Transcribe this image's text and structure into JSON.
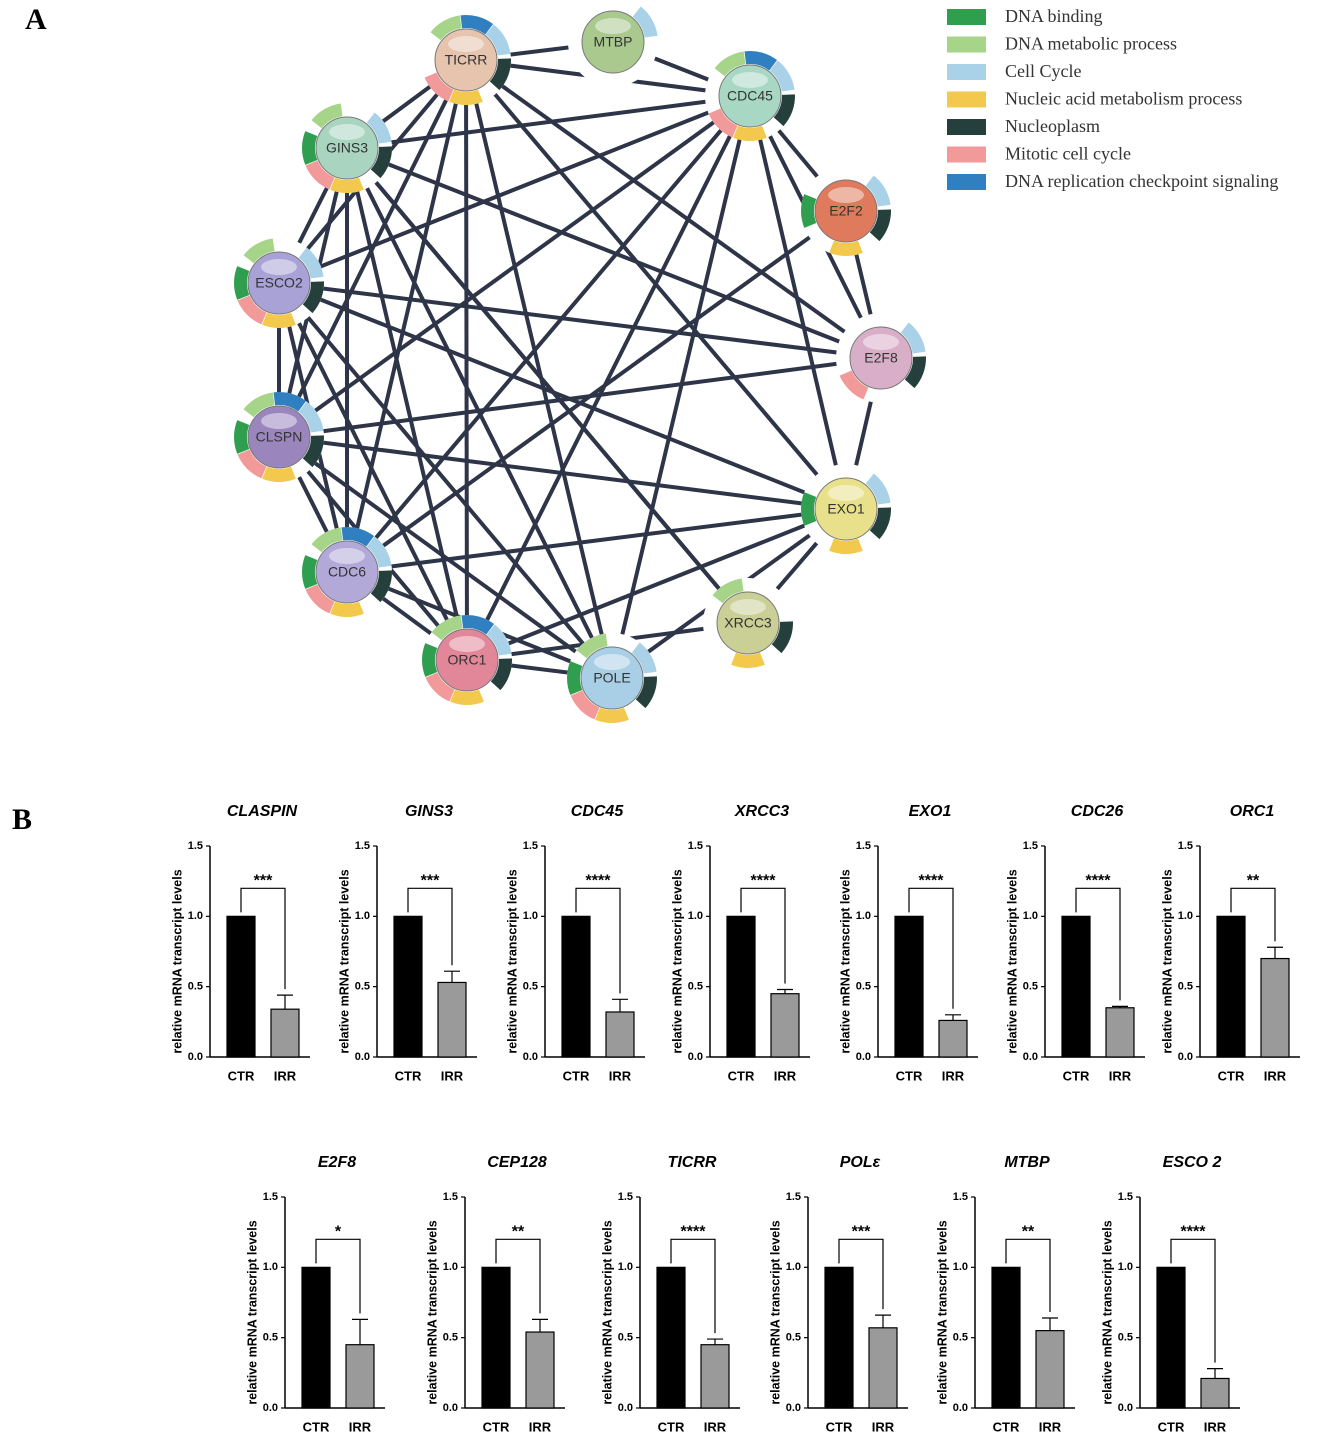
{
  "figure": {
    "panel_labels": [
      "A",
      "B"
    ]
  },
  "network": {
    "legend": [
      {
        "name": "DNA binding",
        "color": "#2f9e4f"
      },
      {
        "name": "DNA metabolic process",
        "color": "#a6d58a"
      },
      {
        "name": "Cell Cycle",
        "color": "#a9d2e8"
      },
      {
        "name": "Nucleic acid metabolism process",
        "color": "#f2c94c"
      },
      {
        "name": "Nucleoplasm",
        "color": "#25403c"
      },
      {
        "name": "Mitotic cell cycle",
        "color": "#f29a9a"
      },
      {
        "name": "DNA replication checkpoint signaling",
        "color": "#2f7fc1"
      }
    ],
    "nodes": [
      "TICRR",
      "MTBP",
      "CDC45",
      "E2F2",
      "E2F8",
      "EXO1",
      "XRCC3",
      "POLE",
      "ORC1",
      "CDC6",
      "CLSPN",
      "ESCO2",
      "GINS3"
    ]
  },
  "chart_data": [
    {
      "type": "bar",
      "title": "CLASPIN",
      "y_label": "relative mRNA transcript levels",
      "categories": [
        "CTR",
        "IRR"
      ],
      "values": [
        1.0,
        0.34
      ],
      "errors": [
        null,
        0.1
      ],
      "colors": [
        "#000000",
        "#9a9a9a"
      ],
      "significance": "***",
      "ylim": [
        0,
        1.5
      ],
      "yticks": [
        {
          "value": 0,
          "label": "0.0"
        },
        0.5,
        {
          "value": 1,
          "label": "1.0"
        },
        1.5
      ]
    },
    {
      "type": "bar",
      "title": "GINS3",
      "y_label": "relative mRNA transcript levels",
      "categories": [
        "CTR",
        "IRR"
      ],
      "values": [
        1.0,
        0.53
      ],
      "errors": [
        null,
        0.08
      ],
      "colors": [
        "#000000",
        "#9a9a9a"
      ],
      "significance": "***",
      "ylim": [
        0,
        1.5
      ],
      "yticks": [
        {
          "value": 0,
          "label": "0.0"
        },
        0.5,
        {
          "value": 1,
          "label": "1.0"
        },
        1.5
      ]
    },
    {
      "type": "bar",
      "title": "CDC45",
      "y_label": "relative mRNA transcript levels",
      "categories": [
        "CTR",
        "IRR"
      ],
      "values": [
        1.0,
        0.32
      ],
      "errors": [
        null,
        0.09
      ],
      "colors": [
        "#000000",
        "#9a9a9a"
      ],
      "significance": "****",
      "ylim": [
        0,
        1.5
      ],
      "yticks": [
        {
          "value": 0,
          "label": "0.0"
        },
        0.5,
        {
          "value": 1,
          "label": "1.0"
        },
        1.5
      ]
    },
    {
      "type": "bar",
      "title": "XRCC3",
      "y_label": "relative mRNA transcript levels",
      "categories": [
        "CTR",
        "IRR"
      ],
      "values": [
        1.0,
        0.45
      ],
      "errors": [
        null,
        0.03
      ],
      "colors": [
        "#000000",
        "#9a9a9a"
      ],
      "significance": "****",
      "ylim": [
        0,
        1.5
      ],
      "yticks": [
        {
          "value": 0,
          "label": "0.0"
        },
        0.5,
        {
          "value": 1,
          "label": "1.0"
        },
        1.5
      ]
    },
    {
      "type": "bar",
      "title": "EXO1",
      "y_label": "relative mRNA transcript levels",
      "categories": [
        "CTR",
        "IRR"
      ],
      "values": [
        1.0,
        0.26
      ],
      "errors": [
        null,
        0.04
      ],
      "colors": [
        "#000000",
        "#9a9a9a"
      ],
      "significance": "****",
      "ylim": [
        0,
        1.5
      ],
      "yticks": [
        {
          "value": 0,
          "label": "0.0"
        },
        0.5,
        {
          "value": 1,
          "label": "1.0"
        },
        1.5
      ]
    },
    {
      "type": "bar",
      "title": "CDC26",
      "y_label": "relative mRNA transcript levels",
      "categories": [
        "CTR",
        "IRR"
      ],
      "values": [
        1.0,
        0.35
      ],
      "errors": [
        null,
        0.01
      ],
      "colors": [
        "#000000",
        "#9a9a9a"
      ],
      "significance": "****",
      "ylim": [
        0,
        1.5
      ],
      "yticks": [
        {
          "value": 0,
          "label": "0.0"
        },
        0.5,
        {
          "value": 1,
          "label": "1.0"
        },
        1.5
      ]
    },
    {
      "type": "bar",
      "title": "ORC1",
      "y_label": "relative mRNA transcript levels",
      "categories": [
        "CTR",
        "IRR"
      ],
      "values": [
        1.0,
        0.7
      ],
      "errors": [
        null,
        0.08
      ],
      "colors": [
        "#000000",
        "#9a9a9a"
      ],
      "significance": "**",
      "ylim": [
        0,
        1.5
      ],
      "yticks": [
        {
          "value": 0,
          "label": "0.0"
        },
        0.5,
        {
          "value": 1,
          "label": "1.0"
        },
        1.5
      ]
    },
    {
      "type": "bar",
      "title": "E2F8",
      "y_label": "relative mRNA transcript levels",
      "categories": [
        "CTR",
        "IRR"
      ],
      "values": [
        1.0,
        0.45
      ],
      "errors": [
        null,
        0.18
      ],
      "colors": [
        "#000000",
        "#9a9a9a"
      ],
      "significance": "*",
      "ylim": [
        0,
        1.5
      ],
      "yticks": [
        {
          "value": 0,
          "label": "0.0"
        },
        0.5,
        {
          "value": 1,
          "label": "1.0"
        },
        1.5
      ]
    },
    {
      "type": "bar",
      "title": "CEP128",
      "y_label": "relative mRNA transcript levels",
      "categories": [
        "CTR",
        "IRR"
      ],
      "values": [
        1.0,
        0.54
      ],
      "errors": [
        null,
        0.09
      ],
      "colors": [
        "#000000",
        "#9a9a9a"
      ],
      "significance": "**",
      "ylim": [
        0,
        1.5
      ],
      "yticks": [
        {
          "value": 0,
          "label": "0.0"
        },
        0.5,
        {
          "value": 1,
          "label": "1.0"
        },
        1.5
      ]
    },
    {
      "type": "bar",
      "title": "TICRR",
      "y_label": "relative mRNA transcript levels",
      "categories": [
        "CTR",
        "IRR"
      ],
      "values": [
        1.0,
        0.45
      ],
      "errors": [
        null,
        0.04
      ],
      "colors": [
        "#000000",
        "#9a9a9a"
      ],
      "significance": "****",
      "ylim": [
        0,
        1.5
      ],
      "yticks": [
        {
          "value": 0,
          "label": "0.0"
        },
        0.5,
        {
          "value": 1,
          "label": "1.0"
        },
        1.5
      ]
    },
    {
      "type": "bar",
      "title": "POLε",
      "y_label": "relative mRNA transcript levels",
      "categories": [
        "CTR",
        "IRR"
      ],
      "values": [
        1.0,
        0.57
      ],
      "errors": [
        null,
        0.09
      ],
      "colors": [
        "#000000",
        "#9a9a9a"
      ],
      "significance": "***",
      "ylim": [
        0,
        1.5
      ],
      "yticks": [
        {
          "value": 0,
          "label": "0.0"
        },
        0.5,
        {
          "value": 1,
          "label": "1.0"
        },
        1.5
      ]
    },
    {
      "type": "bar",
      "title": "MTBP",
      "y_label": "relative mRNA transcript levels",
      "categories": [
        "CTR",
        "IRR"
      ],
      "values": [
        1.0,
        0.55
      ],
      "errors": [
        null,
        0.09
      ],
      "colors": [
        "#000000",
        "#9a9a9a"
      ],
      "significance": "**",
      "ylim": [
        0,
        1.5
      ],
      "yticks": [
        {
          "value": 0,
          "label": "0.0"
        },
        0.5,
        {
          "value": 1,
          "label": "1.0"
        },
        1.5
      ]
    },
    {
      "type": "bar",
      "title": "ESCO 2",
      "y_label": "relative mRNA transcript levels",
      "categories": [
        "CTR",
        "IRR"
      ],
      "values": [
        1.0,
        0.21
      ],
      "errors": [
        null,
        0.07
      ],
      "colors": [
        "#000000",
        "#9a9a9a"
      ],
      "significance": "****",
      "ylim": [
        0,
        1.5
      ],
      "yticks": [
        {
          "value": 0,
          "label": "0.0"
        },
        0.5,
        {
          "value": 1,
          "label": "1.0"
        },
        1.5
      ]
    }
  ]
}
